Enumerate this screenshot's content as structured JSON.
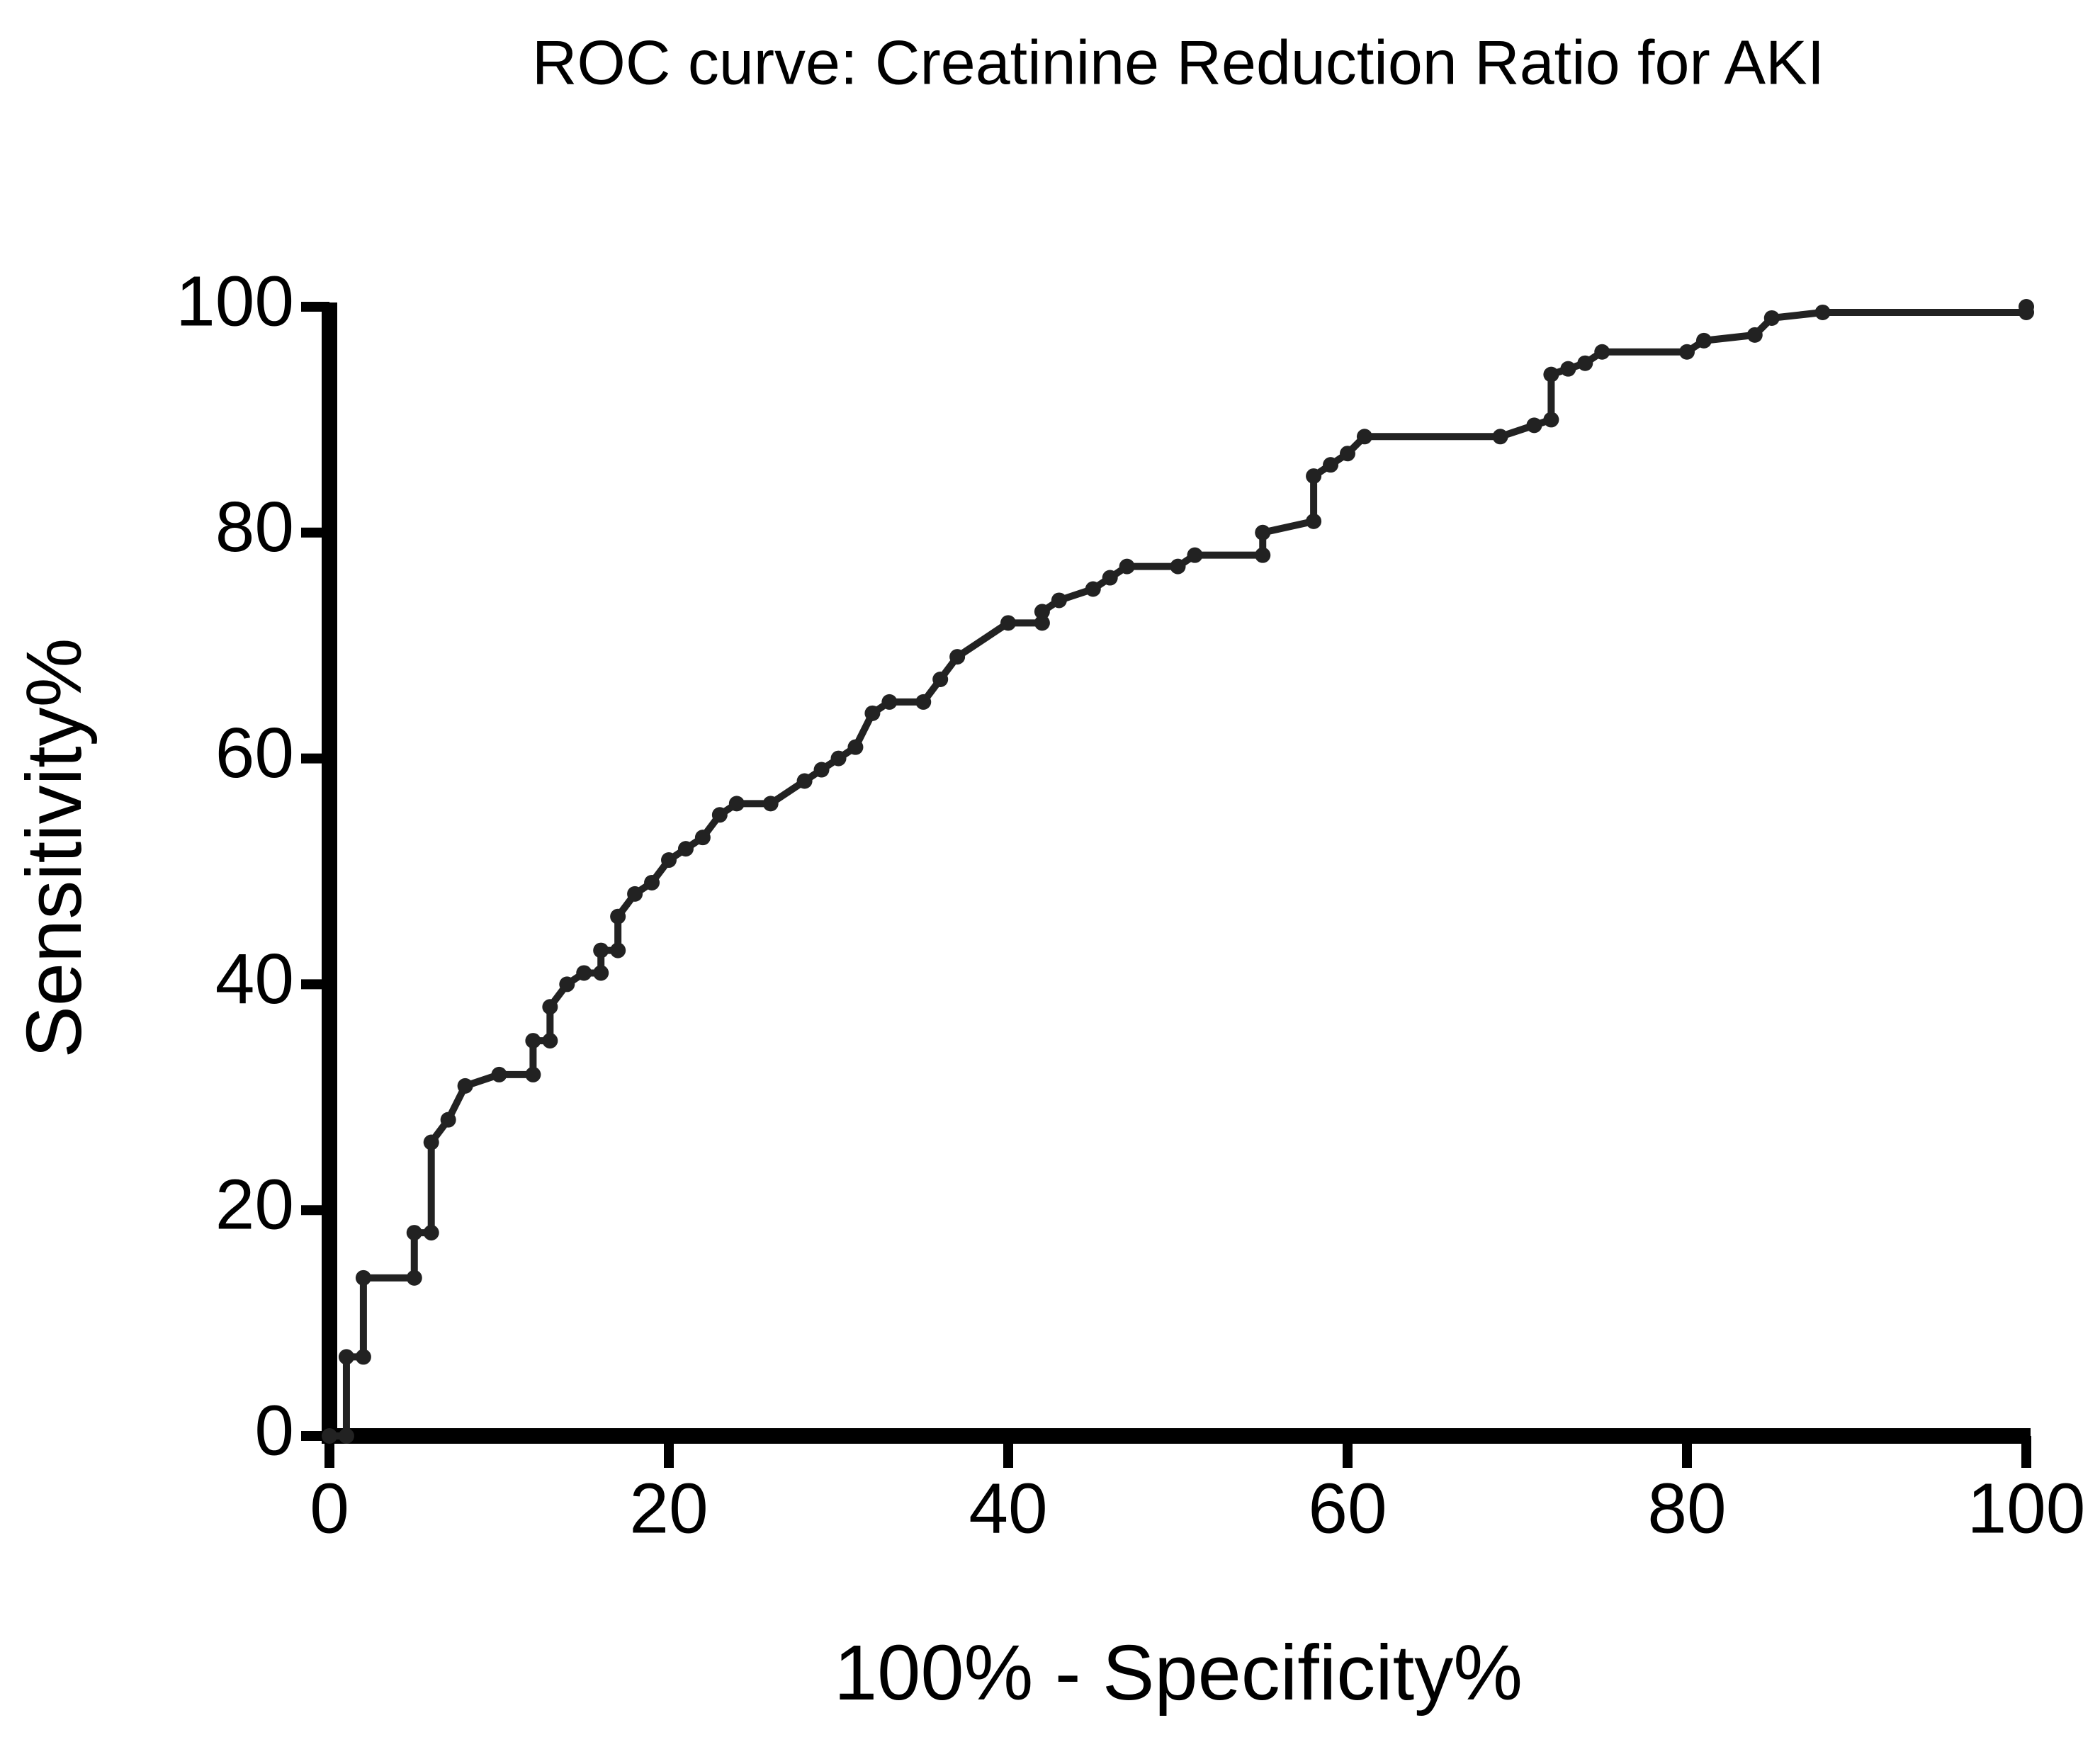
{
  "chart_data": {
    "type": "line",
    "title": "ROC curve: Creatinine Reduction Ratio  for AKI",
    "xlabel": "100% - Specificity%",
    "ylabel": "Sensitivity%",
    "x": [
      0,
      1,
      1,
      2,
      2,
      5,
      5,
      6,
      6,
      7,
      8,
      10,
      12,
      12,
      13,
      13,
      14,
      15,
      16,
      16,
      17,
      17,
      18,
      19,
      20,
      21,
      22,
      23,
      24,
      26,
      28,
      29,
      30,
      31,
      32,
      33,
      35,
      36,
      37,
      40,
      42,
      42,
      43,
      45,
      46,
      47,
      50,
      51,
      55,
      55,
      58,
      58,
      59,
      60,
      61,
      69,
      71,
      72,
      72,
      73,
      74,
      75,
      80,
      81,
      84,
      85,
      88,
      100,
      100
    ],
    "series": [
      {
        "name": "Sensitivity%",
        "color": "#222222",
        "values": [
          0,
          0,
          7,
          7,
          14,
          14,
          18,
          18,
          26,
          28,
          31,
          32,
          32,
          35,
          35,
          38,
          40,
          41,
          41,
          43,
          43,
          46,
          48,
          49,
          51,
          52,
          53,
          55,
          56,
          56,
          58,
          59,
          60,
          61,
          64,
          65,
          65,
          67,
          69,
          72,
          72,
          73,
          74,
          75,
          76,
          77,
          77,
          78,
          78,
          80,
          81,
          85,
          86,
          87,
          88.5,
          88.5,
          89.5,
          90,
          94,
          94.5,
          95,
          96,
          96,
          97,
          97.5,
          99,
          99.5,
          99.5,
          100
        ]
      }
    ],
    "xlim": [
      0,
      100
    ],
    "ylim": [
      0,
      100
    ],
    "xticks": [
      0,
      20,
      40,
      60,
      80,
      100
    ],
    "yticks": [
      0,
      20,
      40,
      60,
      80,
      100
    ]
  }
}
